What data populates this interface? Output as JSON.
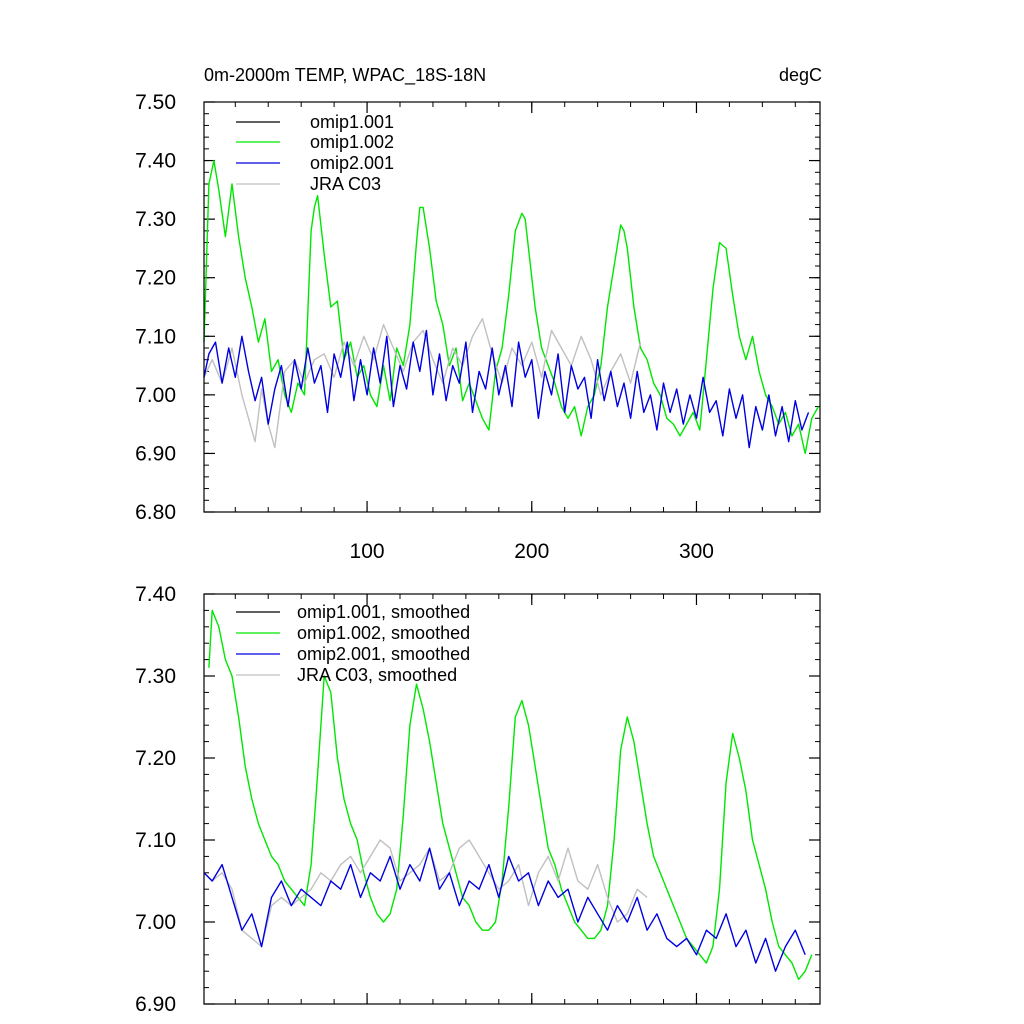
{
  "chart_data": [
    {
      "type": "line",
      "title_left": "0m-2000m TEMP, WPAC_18S-18N",
      "title_right": "degC",
      "xlim": [
        1,
        375
      ],
      "ylim": [
        6.8,
        7.5
      ],
      "x_ticks": [
        100,
        200,
        300
      ],
      "x_tick_labels": [
        "100",
        "200",
        "300"
      ],
      "y_ticks": [
        6.8,
        6.9,
        7.0,
        7.1,
        7.2,
        7.3,
        7.4,
        7.5
      ],
      "y_tick_labels": [
        "6.80",
        "6.90",
        "7.00",
        "7.10",
        "7.20",
        "7.30",
        "7.40",
        "7.50"
      ],
      "legend": [
        "omip1.001",
        "omip1.002",
        "omip2.001",
        "JRA C03"
      ],
      "legend_position": "top-left",
      "series": [
        {
          "name": "omip1.002",
          "color": "#00e600",
          "x": [
            1,
            4,
            7,
            10,
            14,
            18,
            22,
            26,
            30,
            34,
            38,
            42,
            46,
            50,
            54,
            58,
            62,
            66,
            68,
            70,
            74,
            78,
            82,
            86,
            90,
            94,
            98,
            102,
            106,
            110,
            114,
            118,
            122,
            126,
            130,
            132,
            134,
            138,
            142,
            146,
            150,
            154,
            158,
            162,
            166,
            170,
            174,
            178,
            182,
            186,
            190,
            194,
            196,
            198,
            202,
            206,
            210,
            214,
            218,
            222,
            226,
            230,
            234,
            238,
            242,
            246,
            250,
            254,
            256,
            258,
            262,
            266,
            270,
            274,
            278,
            282,
            286,
            290,
            294,
            298,
            302,
            306,
            310,
            314,
            318,
            322,
            326,
            330,
            334,
            338,
            342,
            346,
            350,
            354,
            358,
            362,
            366,
            370,
            374
          ],
          "values": [
            7.09,
            7.36,
            7.4,
            7.35,
            7.27,
            7.36,
            7.27,
            7.2,
            7.15,
            7.09,
            7.13,
            7.04,
            7.06,
            7.0,
            6.97,
            7.02,
            7.0,
            7.28,
            7.32,
            7.34,
            7.24,
            7.15,
            7.16,
            7.06,
            7.09,
            7.03,
            7.05,
            7.0,
            6.98,
            7.05,
            6.99,
            7.08,
            7.05,
            7.12,
            7.26,
            7.32,
            7.32,
            7.25,
            7.16,
            7.12,
            7.05,
            7.08,
            6.99,
            7.02,
            6.99,
            6.96,
            6.94,
            7.04,
            7.08,
            7.17,
            7.28,
            7.31,
            7.3,
            7.25,
            7.15,
            7.08,
            7.05,
            7.02,
            6.98,
            6.96,
            6.98,
            6.93,
            6.98,
            7.0,
            7.05,
            7.15,
            7.22,
            7.29,
            7.28,
            7.25,
            7.15,
            7.08,
            7.06,
            7.02,
            7.0,
            6.96,
            6.95,
            6.93,
            6.95,
            6.97,
            6.94,
            7.06,
            7.18,
            7.26,
            7.25,
            7.17,
            7.1,
            7.06,
            7.1,
            7.04,
            7.0,
            6.98,
            6.95,
            6.97,
            6.93,
            6.95,
            6.9,
            6.96,
            6.98
          ]
        },
        {
          "name": "JRA C03",
          "color": "#c0c0c0",
          "x": [
            1,
            6,
            12,
            18,
            24,
            28,
            32,
            36,
            40,
            44,
            50,
            56,
            62,
            68,
            74,
            80,
            86,
            92,
            98,
            104,
            110,
            116,
            122,
            128,
            134,
            140,
            146,
            152,
            158,
            164,
            170,
            176,
            182,
            188,
            194,
            200,
            206,
            212,
            218,
            224,
            230,
            236,
            242,
            248,
            254,
            260,
            266
          ],
          "values": [
            7.03,
            7.06,
            7.02,
            7.08,
            7.0,
            6.96,
            6.92,
            7.01,
            6.95,
            6.91,
            7.04,
            7.06,
            7.02,
            7.06,
            7.07,
            7.03,
            7.09,
            7.05,
            7.1,
            7.06,
            7.12,
            7.08,
            7.04,
            7.09,
            7.11,
            7.06,
            7.02,
            7.08,
            7.05,
            7.1,
            7.13,
            7.07,
            7.02,
            7.08,
            7.05,
            7.09,
            7.03,
            7.11,
            7.08,
            7.05,
            7.1,
            7.06,
            7.0,
            7.04,
            7.07,
            7.02,
            7.09
          ]
        },
        {
          "name": "omip2.001",
          "color": "#0000e0",
          "x": [
            1,
            4,
            8,
            12,
            16,
            20,
            24,
            28,
            32,
            36,
            40,
            44,
            48,
            52,
            56,
            60,
            64,
            68,
            72,
            76,
            80,
            84,
            88,
            92,
            96,
            100,
            104,
            108,
            112,
            116,
            120,
            124,
            128,
            132,
            136,
            140,
            144,
            148,
            152,
            156,
            160,
            164,
            168,
            172,
            176,
            180,
            184,
            188,
            192,
            196,
            200,
            204,
            208,
            212,
            216,
            220,
            224,
            228,
            232,
            236,
            240,
            244,
            248,
            252,
            256,
            260,
            264,
            268,
            272,
            276,
            280,
            284,
            288,
            292,
            296,
            300,
            304,
            308,
            312,
            316,
            320,
            324,
            328,
            332,
            336,
            340,
            344,
            348,
            352,
            356,
            360,
            364,
            368
          ],
          "values": [
            7.03,
            7.07,
            7.09,
            7.02,
            7.08,
            7.03,
            7.1,
            7.04,
            6.99,
            7.03,
            6.95,
            7.01,
            7.05,
            6.98,
            7.06,
            7.01,
            7.08,
            7.02,
            7.05,
            6.97,
            7.07,
            7.03,
            7.09,
            6.99,
            7.06,
            7.0,
            7.08,
            7.02,
            7.1,
            6.98,
            7.05,
            7.01,
            7.09,
            7.04,
            7.11,
            7.0,
            7.07,
            6.99,
            7.05,
            7.02,
            7.09,
            6.97,
            7.04,
            7.01,
            7.08,
            7.0,
            7.05,
            6.98,
            7.09,
            7.03,
            7.06,
            6.96,
            7.04,
            7.0,
            7.07,
            6.97,
            7.05,
            7.01,
            7.03,
            6.96,
            7.06,
            6.99,
            7.04,
            6.98,
            7.02,
            6.96,
            7.04,
            6.97,
            7.0,
            6.94,
            7.02,
            6.97,
            7.01,
            6.95,
            7.0,
            6.96,
            7.03,
            6.97,
            6.99,
            6.93,
            7.01,
            6.96,
            7.0,
            6.91,
            6.98,
            6.94,
            7.0,
            6.93,
            6.98,
            6.92,
            6.99,
            6.94,
            6.97
          ]
        },
        {
          "name": "omip1.001",
          "color": "#000000",
          "x": [],
          "values": []
        }
      ]
    },
    {
      "type": "line",
      "xlim": [
        1,
        375
      ],
      "ylim": [
        6.9,
        7.4
      ],
      "x_ticks": [
        100,
        200,
        300
      ],
      "x_tick_labels": [
        "",
        "",
        ""
      ],
      "y_ticks": [
        6.9,
        7.0,
        7.1,
        7.2,
        7.3,
        7.4
      ],
      "y_tick_labels": [
        "6.90",
        "7.00",
        "7.10",
        "7.20",
        "7.30",
        "7.40"
      ],
      "legend": [
        "omip1.001, smoothed",
        "omip1.002, smoothed",
        "omip2.001, smoothed",
        "JRA C03, smoothed"
      ],
      "legend_position": "top-left",
      "series": [
        {
          "name": "omip1.002, smoothed",
          "color": "#00e600",
          "x": [
            4,
            6,
            10,
            14,
            18,
            22,
            26,
            30,
            34,
            38,
            42,
            46,
            50,
            54,
            58,
            62,
            66,
            70,
            74,
            78,
            82,
            86,
            90,
            94,
            98,
            102,
            106,
            110,
            114,
            118,
            122,
            126,
            130,
            134,
            138,
            142,
            146,
            150,
            154,
            158,
            162,
            166,
            170,
            174,
            178,
            182,
            186,
            190,
            194,
            198,
            202,
            206,
            210,
            214,
            218,
            222,
            226,
            230,
            234,
            238,
            242,
            246,
            250,
            254,
            258,
            262,
            266,
            270,
            274,
            278,
            282,
            286,
            290,
            294,
            298,
            302,
            306,
            310,
            314,
            318,
            322,
            326,
            330,
            334,
            338,
            342,
            346,
            350,
            354,
            358,
            362,
            366,
            370
          ],
          "values": [
            7.31,
            7.38,
            7.36,
            7.32,
            7.3,
            7.25,
            7.19,
            7.15,
            7.12,
            7.1,
            7.08,
            7.07,
            7.05,
            7.04,
            7.03,
            7.02,
            7.07,
            7.18,
            7.3,
            7.28,
            7.2,
            7.15,
            7.12,
            7.1,
            7.06,
            7.03,
            7.01,
            7.0,
            7.01,
            7.04,
            7.13,
            7.24,
            7.29,
            7.26,
            7.22,
            7.17,
            7.12,
            7.09,
            7.06,
            7.03,
            7.02,
            7.0,
            6.99,
            6.99,
            7.0,
            7.05,
            7.14,
            7.25,
            7.27,
            7.24,
            7.19,
            7.14,
            7.09,
            7.07,
            7.04,
            7.02,
            7.0,
            6.99,
            6.98,
            6.98,
            6.99,
            7.02,
            7.1,
            7.21,
            7.25,
            7.22,
            7.17,
            7.12,
            7.08,
            7.06,
            7.04,
            7.02,
            7.0,
            6.98,
            6.97,
            6.96,
            6.95,
            6.97,
            7.04,
            7.17,
            7.23,
            7.2,
            7.16,
            7.1,
            7.07,
            7.04,
            7.0,
            6.97,
            6.96,
            6.95,
            6.93,
            6.94,
            6.96
          ]
        },
        {
          "name": "JRA C03, smoothed",
          "color": "#c0c0c0",
          "x": [
            1,
            6,
            12,
            18,
            24,
            30,
            36,
            42,
            48,
            54,
            60,
            66,
            72,
            78,
            84,
            90,
            96,
            102,
            108,
            114,
            120,
            126,
            132,
            138,
            144,
            150,
            156,
            162,
            168,
            174,
            180,
            186,
            192,
            198,
            204,
            210,
            216,
            222,
            228,
            234,
            240,
            246,
            252,
            258,
            264,
            270
          ],
          "values": [
            7.06,
            7.05,
            7.06,
            7.04,
            6.99,
            6.98,
            6.97,
            7.02,
            7.03,
            7.02,
            7.03,
            7.04,
            7.06,
            7.05,
            7.07,
            7.08,
            7.06,
            7.08,
            7.1,
            7.09,
            7.05,
            7.06,
            7.07,
            7.09,
            7.05,
            7.06,
            7.09,
            7.1,
            7.08,
            7.06,
            7.04,
            7.05,
            7.07,
            7.02,
            7.06,
            7.08,
            7.05,
            7.09,
            7.05,
            7.04,
            7.07,
            7.03,
            7.0,
            7.01,
            7.04,
            7.03
          ]
        },
        {
          "name": "omip2.001, smoothed",
          "color": "#0000e0",
          "x": [
            1,
            6,
            12,
            18,
            24,
            30,
            36,
            42,
            48,
            54,
            60,
            66,
            72,
            78,
            84,
            90,
            96,
            102,
            108,
            114,
            120,
            126,
            132,
            138,
            144,
            150,
            156,
            162,
            168,
            174,
            180,
            186,
            192,
            198,
            204,
            210,
            216,
            222,
            228,
            234,
            240,
            246,
            252,
            258,
            264,
            270,
            276,
            282,
            288,
            294,
            300,
            306,
            312,
            318,
            324,
            330,
            336,
            342,
            348,
            354,
            360,
            366
          ],
          "values": [
            7.06,
            7.05,
            7.07,
            7.03,
            6.99,
            7.01,
            6.97,
            7.03,
            7.05,
            7.02,
            7.04,
            7.03,
            7.02,
            7.05,
            7.04,
            7.07,
            7.03,
            7.06,
            7.05,
            7.08,
            7.04,
            7.07,
            7.05,
            7.09,
            7.04,
            7.06,
            7.02,
            7.05,
            7.04,
            7.07,
            7.03,
            7.08,
            7.05,
            7.06,
            7.02,
            7.05,
            7.03,
            7.04,
            7.0,
            7.03,
            7.01,
            6.99,
            7.02,
            7.0,
            7.03,
            6.99,
            7.01,
            6.98,
            6.97,
            6.98,
            6.96,
            6.99,
            6.98,
            7.01,
            6.97,
            6.99,
            6.95,
            6.98,
            6.94,
            6.97,
            6.99,
            6.96
          ]
        },
        {
          "name": "omip1.001, smoothed",
          "color": "#000000",
          "x": [],
          "values": []
        }
      ]
    }
  ]
}
